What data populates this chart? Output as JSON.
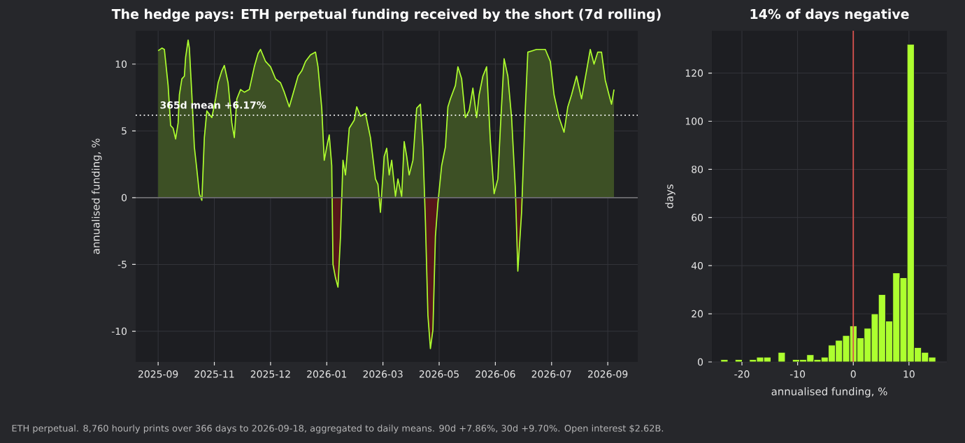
{
  "chart_data": [
    {
      "type": "area",
      "title": "The hedge pays: ETH perpetual funding received by the short (7d rolling)",
      "ylabel": "annualised funding, %",
      "xlim": [
        "2025-08-31",
        "2026-10-07"
      ],
      "ylim": [
        -12.3,
        12.5
      ],
      "xticks": [
        {
          "value": "2025-09-18",
          "label": "2025-09"
        },
        {
          "value": "2025-11-02",
          "label": "2025-11"
        },
        {
          "value": "2025-12-17",
          "label": "2025-12"
        },
        {
          "value": "2026-01-31",
          "label": "2026-01"
        },
        {
          "value": "2026-03-17",
          "label": "2026-03"
        },
        {
          "value": "2026-05-01",
          "label": "2026-05"
        },
        {
          "value": "2026-06-15",
          "label": "2026-06"
        },
        {
          "value": "2026-07-30",
          "label": "2026-07"
        },
        {
          "value": "2026-09-13",
          "label": "2026-09"
        }
      ],
      "yticks": [
        -10,
        -5,
        0,
        5,
        10
      ],
      "grid": true,
      "series": [
        {
          "color": "#adff2f",
          "x": [
            "2025-09-18",
            "2025-09-21",
            "2025-09-23",
            "2025-09-26",
            "2025-09-28",
            "2025-09-30",
            "2025-10-02",
            "2025-10-04",
            "2025-10-05",
            "2025-10-07",
            "2025-10-09",
            "2025-10-10",
            "2025-10-12",
            "2025-10-13",
            "2025-10-15",
            "2025-10-17",
            "2025-10-19",
            "2025-10-21",
            "2025-10-23",
            "2025-10-25",
            "2025-10-27",
            "2025-10-31",
            "2025-11-03",
            "2025-11-05",
            "2025-11-08",
            "2025-11-10",
            "2025-11-13",
            "2025-11-16",
            "2025-11-18",
            "2025-11-20",
            "2025-11-23",
            "2025-11-26",
            "2025-11-30",
            "2025-12-04",
            "2025-12-07",
            "2025-12-09",
            "2025-12-13",
            "2025-12-17",
            "2025-12-21",
            "2025-12-25",
            "2025-12-28",
            "2026-01-01",
            "2026-01-05",
            "2026-01-08",
            "2026-01-11",
            "2026-01-14",
            "2026-01-18",
            "2026-01-22",
            "2026-01-24",
            "2026-01-27",
            "2026-01-29",
            "2026-01-31",
            "2026-02-02",
            "2026-02-04",
            "2026-02-05",
            "2026-02-07",
            "2026-02-09",
            "2026-02-11",
            "2026-02-13",
            "2026-02-15",
            "2026-02-18",
            "2026-02-22",
            "2026-02-24",
            "2026-02-27",
            "2026-03-03",
            "2026-03-07",
            "2026-03-11",
            "2026-03-13",
            "2026-03-15",
            "2026-03-18",
            "2026-03-20",
            "2026-03-22",
            "2026-03-24",
            "2026-03-27",
            "2026-03-29",
            "2026-04-01",
            "2026-04-03",
            "2026-04-05",
            "2026-04-07",
            "2026-04-10",
            "2026-04-13",
            "2026-04-16",
            "2026-04-18",
            "2026-04-20",
            "2026-04-22",
            "2026-04-24",
            "2026-04-26",
            "2026-04-28",
            "2026-04-30",
            "2026-05-03",
            "2026-05-06",
            "2026-05-08",
            "2026-05-10",
            "2026-05-14",
            "2026-05-16",
            "2026-05-19",
            "2026-05-22",
            "2026-05-25",
            "2026-05-28",
            "2026-05-31",
            "2026-06-02",
            "2026-06-05",
            "2026-06-08",
            "2026-06-11",
            "2026-06-14",
            "2026-06-17",
            "2026-06-19",
            "2026-06-22",
            "2026-06-25",
            "2026-06-28",
            "2026-07-01",
            "2026-07-03",
            "2026-07-06",
            "2026-07-09",
            "2026-07-11",
            "2026-07-18",
            "2026-07-25",
            "2026-07-29",
            "2026-08-01",
            "2026-08-05",
            "2026-08-09",
            "2026-08-12",
            "2026-08-15",
            "2026-08-19",
            "2026-08-23",
            "2026-08-27",
            "2026-08-30",
            "2026-09-02",
            "2026-09-05",
            "2026-09-08",
            "2026-09-11",
            "2026-09-14",
            "2026-09-16",
            "2026-09-18"
          ],
          "values": [
            11.0,
            11.2,
            11.1,
            8.4,
            5.4,
            5.2,
            4.4,
            5.6,
            7.7,
            8.9,
            9.1,
            10.5,
            11.8,
            11.2,
            7.7,
            3.8,
            2.1,
            0.3,
            -0.2,
            4.5,
            6.5,
            6.0,
            7.4,
            8.6,
            9.5,
            9.9,
            8.6,
            5.6,
            4.5,
            7.4,
            8.1,
            7.9,
            8.1,
            9.8,
            10.8,
            11.1,
            10.2,
            9.8,
            8.9,
            8.6,
            7.9,
            6.8,
            8.1,
            9.1,
            9.5,
            10.2,
            10.7,
            10.9,
            9.8,
            6.7,
            2.8,
            3.8,
            4.7,
            2.4,
            -5.0,
            -6.0,
            -6.7,
            -2.9,
            2.8,
            1.7,
            5.2,
            5.8,
            6.8,
            6.1,
            6.3,
            4.5,
            1.4,
            1.0,
            -1.1,
            3.1,
            3.7,
            1.7,
            2.8,
            0.1,
            1.4,
            0.1,
            4.2,
            3.1,
            1.7,
            2.8,
            6.7,
            7.0,
            3.8,
            -1.8,
            -8.8,
            -11.3,
            -9.9,
            -2.9,
            -0.4,
            2.4,
            3.8,
            6.8,
            7.4,
            8.4,
            9.8,
            8.9,
            6.0,
            6.5,
            8.2,
            6.0,
            7.7,
            9.1,
            9.8,
            4.2,
            0.3,
            1.4,
            5.2,
            10.4,
            9.1,
            6.0,
            0.7,
            -5.5,
            -1.1,
            6.7,
            10.9,
            11.1,
            11.1,
            10.2,
            7.7,
            6.0,
            4.9,
            6.8,
            7.7,
            9.1,
            7.4,
            9.5,
            11.1,
            10.0,
            10.9,
            10.9,
            8.8,
            7.7,
            7.0,
            8.1
          ]
        }
      ],
      "ref_lines": [
        {
          "axis": "y",
          "value": 0,
          "color": "#6e6e72",
          "line_style": "solid"
        },
        {
          "axis": "y",
          "value": 6.17,
          "label": "365d mean +6.17%",
          "color": "#ffffff",
          "line_style": "dotted"
        }
      ],
      "annotations": [
        "ETH perpetual. 8,760 hourly prints over 366 days to 2026-09-18, aggregated to daily means. 90d +7.86%, 30d +9.70%. Open interest $2.62B."
      ]
    },
    {
      "type": "histogram",
      "title": "14% of days negative",
      "xlabel": "annualised funding, %",
      "ylabel": "days",
      "color": "#adff2f",
      "bins": [
        -23.8,
        -22.51,
        -21.23,
        -19.94,
        -18.65,
        -17.37,
        -16.08,
        -14.79,
        -13.5,
        -12.22,
        -10.93,
        -9.64,
        -8.36,
        -7.07,
        -5.78,
        -4.5,
        -3.21,
        -1.92,
        -0.63,
        0.65,
        1.94,
        3.23,
        4.51,
        5.8,
        7.09,
        8.38,
        9.66,
        10.95,
        12.24,
        13.52,
        14.81
      ],
      "values": [
        1,
        0,
        1,
        0,
        1,
        2,
        2,
        0,
        4,
        0,
        1,
        1,
        3,
        1,
        2,
        7,
        9,
        11,
        15,
        10,
        14,
        20,
        28,
        17,
        37,
        35,
        132,
        6,
        4,
        2
      ],
      "xlim": [
        -25.4,
        16.8
      ],
      "ylim": [
        0,
        137.6
      ],
      "xticks": [
        -20,
        -10,
        0,
        10
      ],
      "yticks": [
        0,
        20,
        40,
        60,
        80,
        100,
        120
      ],
      "grid": true,
      "ref_lines": [
        {
          "axis": "x",
          "value": 0,
          "color": "#d9534f",
          "line_style": "solid"
        }
      ]
    }
  ]
}
